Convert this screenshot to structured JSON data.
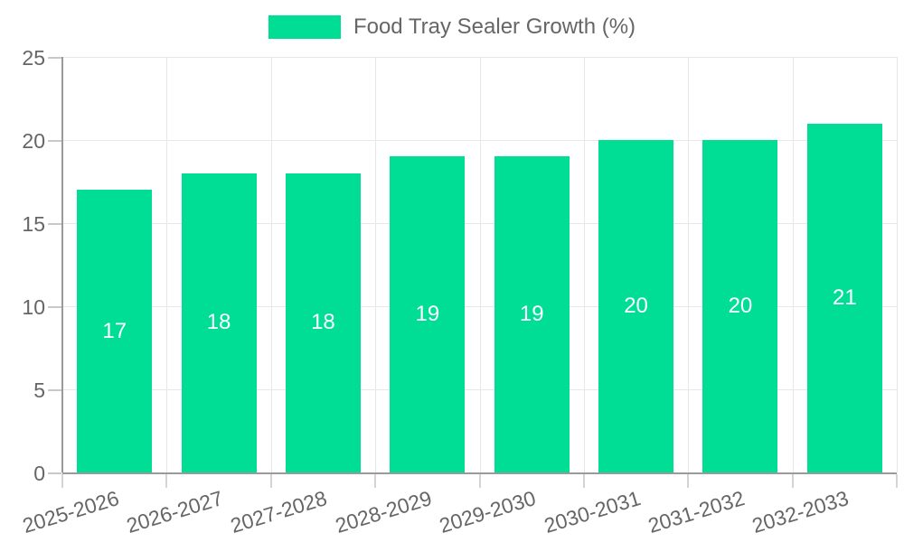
{
  "chart_data": {
    "type": "bar",
    "title": "",
    "legend": {
      "label": "Food Tray Sealer Growth (%)",
      "position": "top"
    },
    "categories": [
      "2025-2026",
      "2026-2027",
      "2027-2028",
      "2028-2029",
      "2029-2030",
      "2030-2031",
      "2031-2032",
      "2032-2033"
    ],
    "values": [
      17,
      18,
      18,
      19,
      19,
      20,
      20,
      21
    ],
    "xlabel": "",
    "ylabel": "",
    "ylim": [
      0,
      25
    ],
    "yticks": [
      0,
      5,
      10,
      15,
      20,
      25
    ],
    "grid": true,
    "bar_color": "#00DE96",
    "data_label_color": "#ffffff",
    "axis_text_color": "#666666"
  }
}
